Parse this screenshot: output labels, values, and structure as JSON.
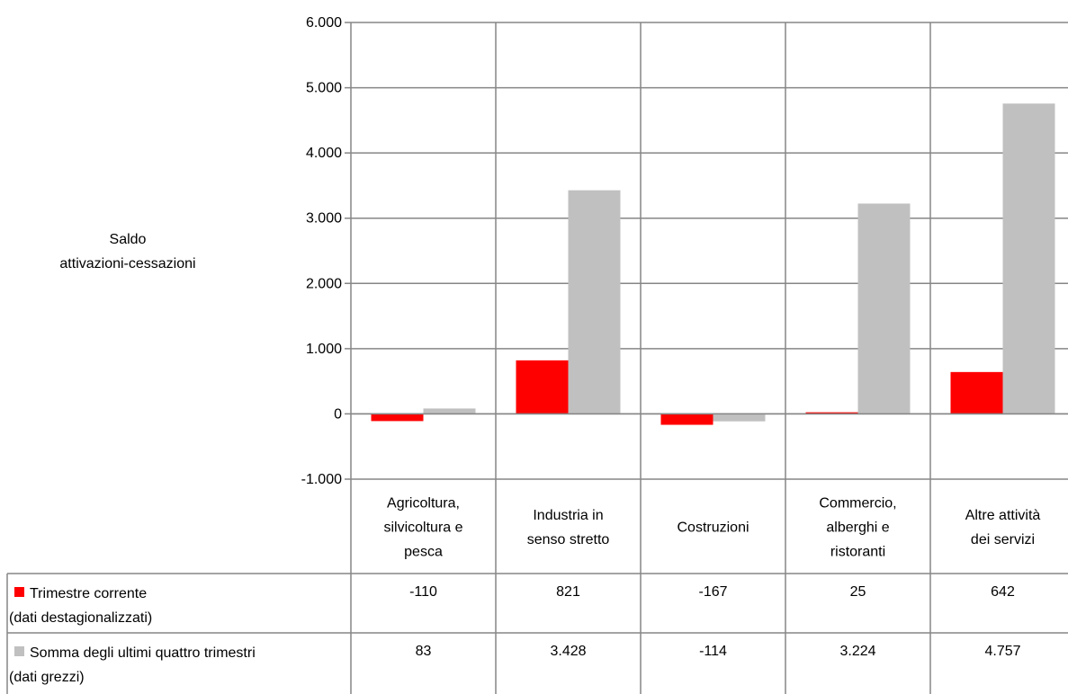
{
  "chart_data": {
    "type": "bar",
    "ylabel": [
      "Saldo",
      "attivazioni-cessazioni"
    ],
    "ylim": [
      -1000,
      6000
    ],
    "ytick_values": [
      -1000,
      0,
      1000,
      2000,
      3000,
      4000,
      5000,
      6000
    ],
    "ytick_labels": [
      "-1.000",
      "0",
      "1.000",
      "2.000",
      "3.000",
      "4.000",
      "5.000",
      "6.000"
    ],
    "grid": true,
    "legend": "data-table",
    "categories": [
      [
        "Agricoltura,",
        "silvicoltura e",
        "pesca"
      ],
      [
        "Industria in",
        "senso stretto"
      ],
      [
        "Costruzioni"
      ],
      [
        "Commercio,",
        "alberghi e",
        "ristoranti"
      ],
      [
        "Altre attività",
        "dei servizi"
      ]
    ],
    "series": [
      {
        "name": [
          "Trimestre corrente",
          "(dati destagionalizzati)"
        ],
        "color": "#ff0000",
        "values": [
          -110,
          821,
          -167,
          25,
          642
        ],
        "labels": [
          "-110",
          "821",
          "-167",
          "25",
          "642"
        ]
      },
      {
        "name": [
          "Somma degli ultimi quattro trimestri",
          "(dati grezzi)"
        ],
        "color": "#c0c0c0",
        "values": [
          83,
          3428,
          -114,
          3224,
          4757
        ],
        "labels": [
          "83",
          "3.428",
          "-114",
          "3.224",
          "4.757"
        ]
      }
    ]
  }
}
